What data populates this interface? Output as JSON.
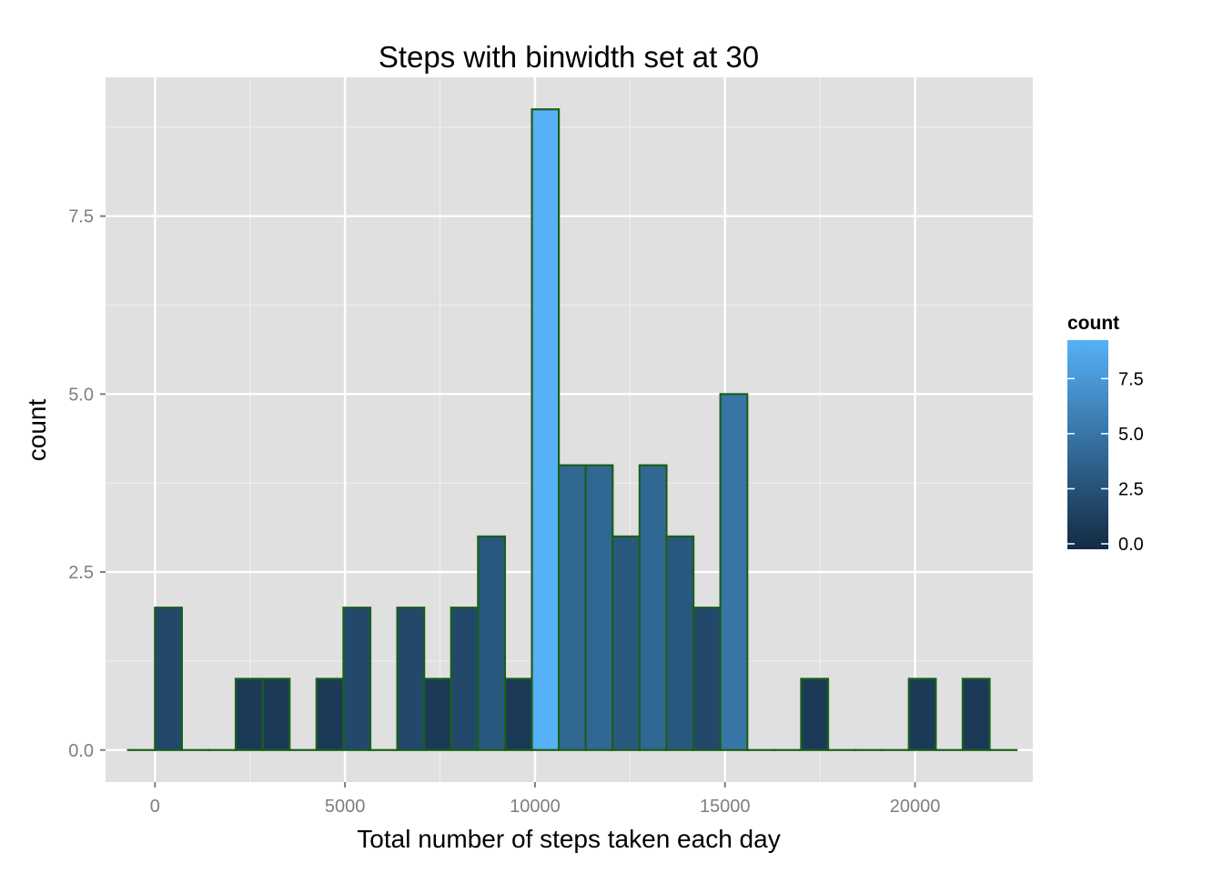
{
  "chart_data": {
    "type": "bar",
    "title": "Steps with binwidth set at 30",
    "xlabel": "Total number of steps taken each day",
    "ylabel": "count",
    "xlim": [
      -1300,
      23100
    ],
    "ylim": [
      -0.45,
      9.45
    ],
    "xticks": [
      0,
      5000,
      10000,
      15000,
      20000
    ],
    "xtick_labels": [
      "0",
      "5000",
      "10000",
      "15000",
      "20000"
    ],
    "yticks": [
      0,
      2.5,
      5,
      7.5
    ],
    "ytick_labels": [
      "0.0",
      "2.5",
      "5.0",
      "7.5"
    ],
    "grid": true,
    "panel_color": "#e0e0e0",
    "outline_color": "#1a5f1a",
    "bin_width": 708.5,
    "bin_start": -708.5,
    "counts": [
      0,
      2,
      0,
      0,
      1,
      1,
      0,
      1,
      2,
      0,
      2,
      1,
      2,
      3,
      1,
      9,
      4,
      4,
      3,
      4,
      3,
      2,
      5,
      0,
      0,
      1,
      0,
      0,
      0,
      1,
      0,
      1,
      0
    ],
    "legend": {
      "title": "count",
      "position": "right",
      "min": 0,
      "max": 9,
      "ticks": [
        0,
        2.5,
        5,
        7.5
      ],
      "tick_labels": [
        "0.0",
        "2.5",
        "5.0",
        "7.5"
      ],
      "low_color": "#132b43",
      "high_color": "#56b1f7"
    }
  }
}
